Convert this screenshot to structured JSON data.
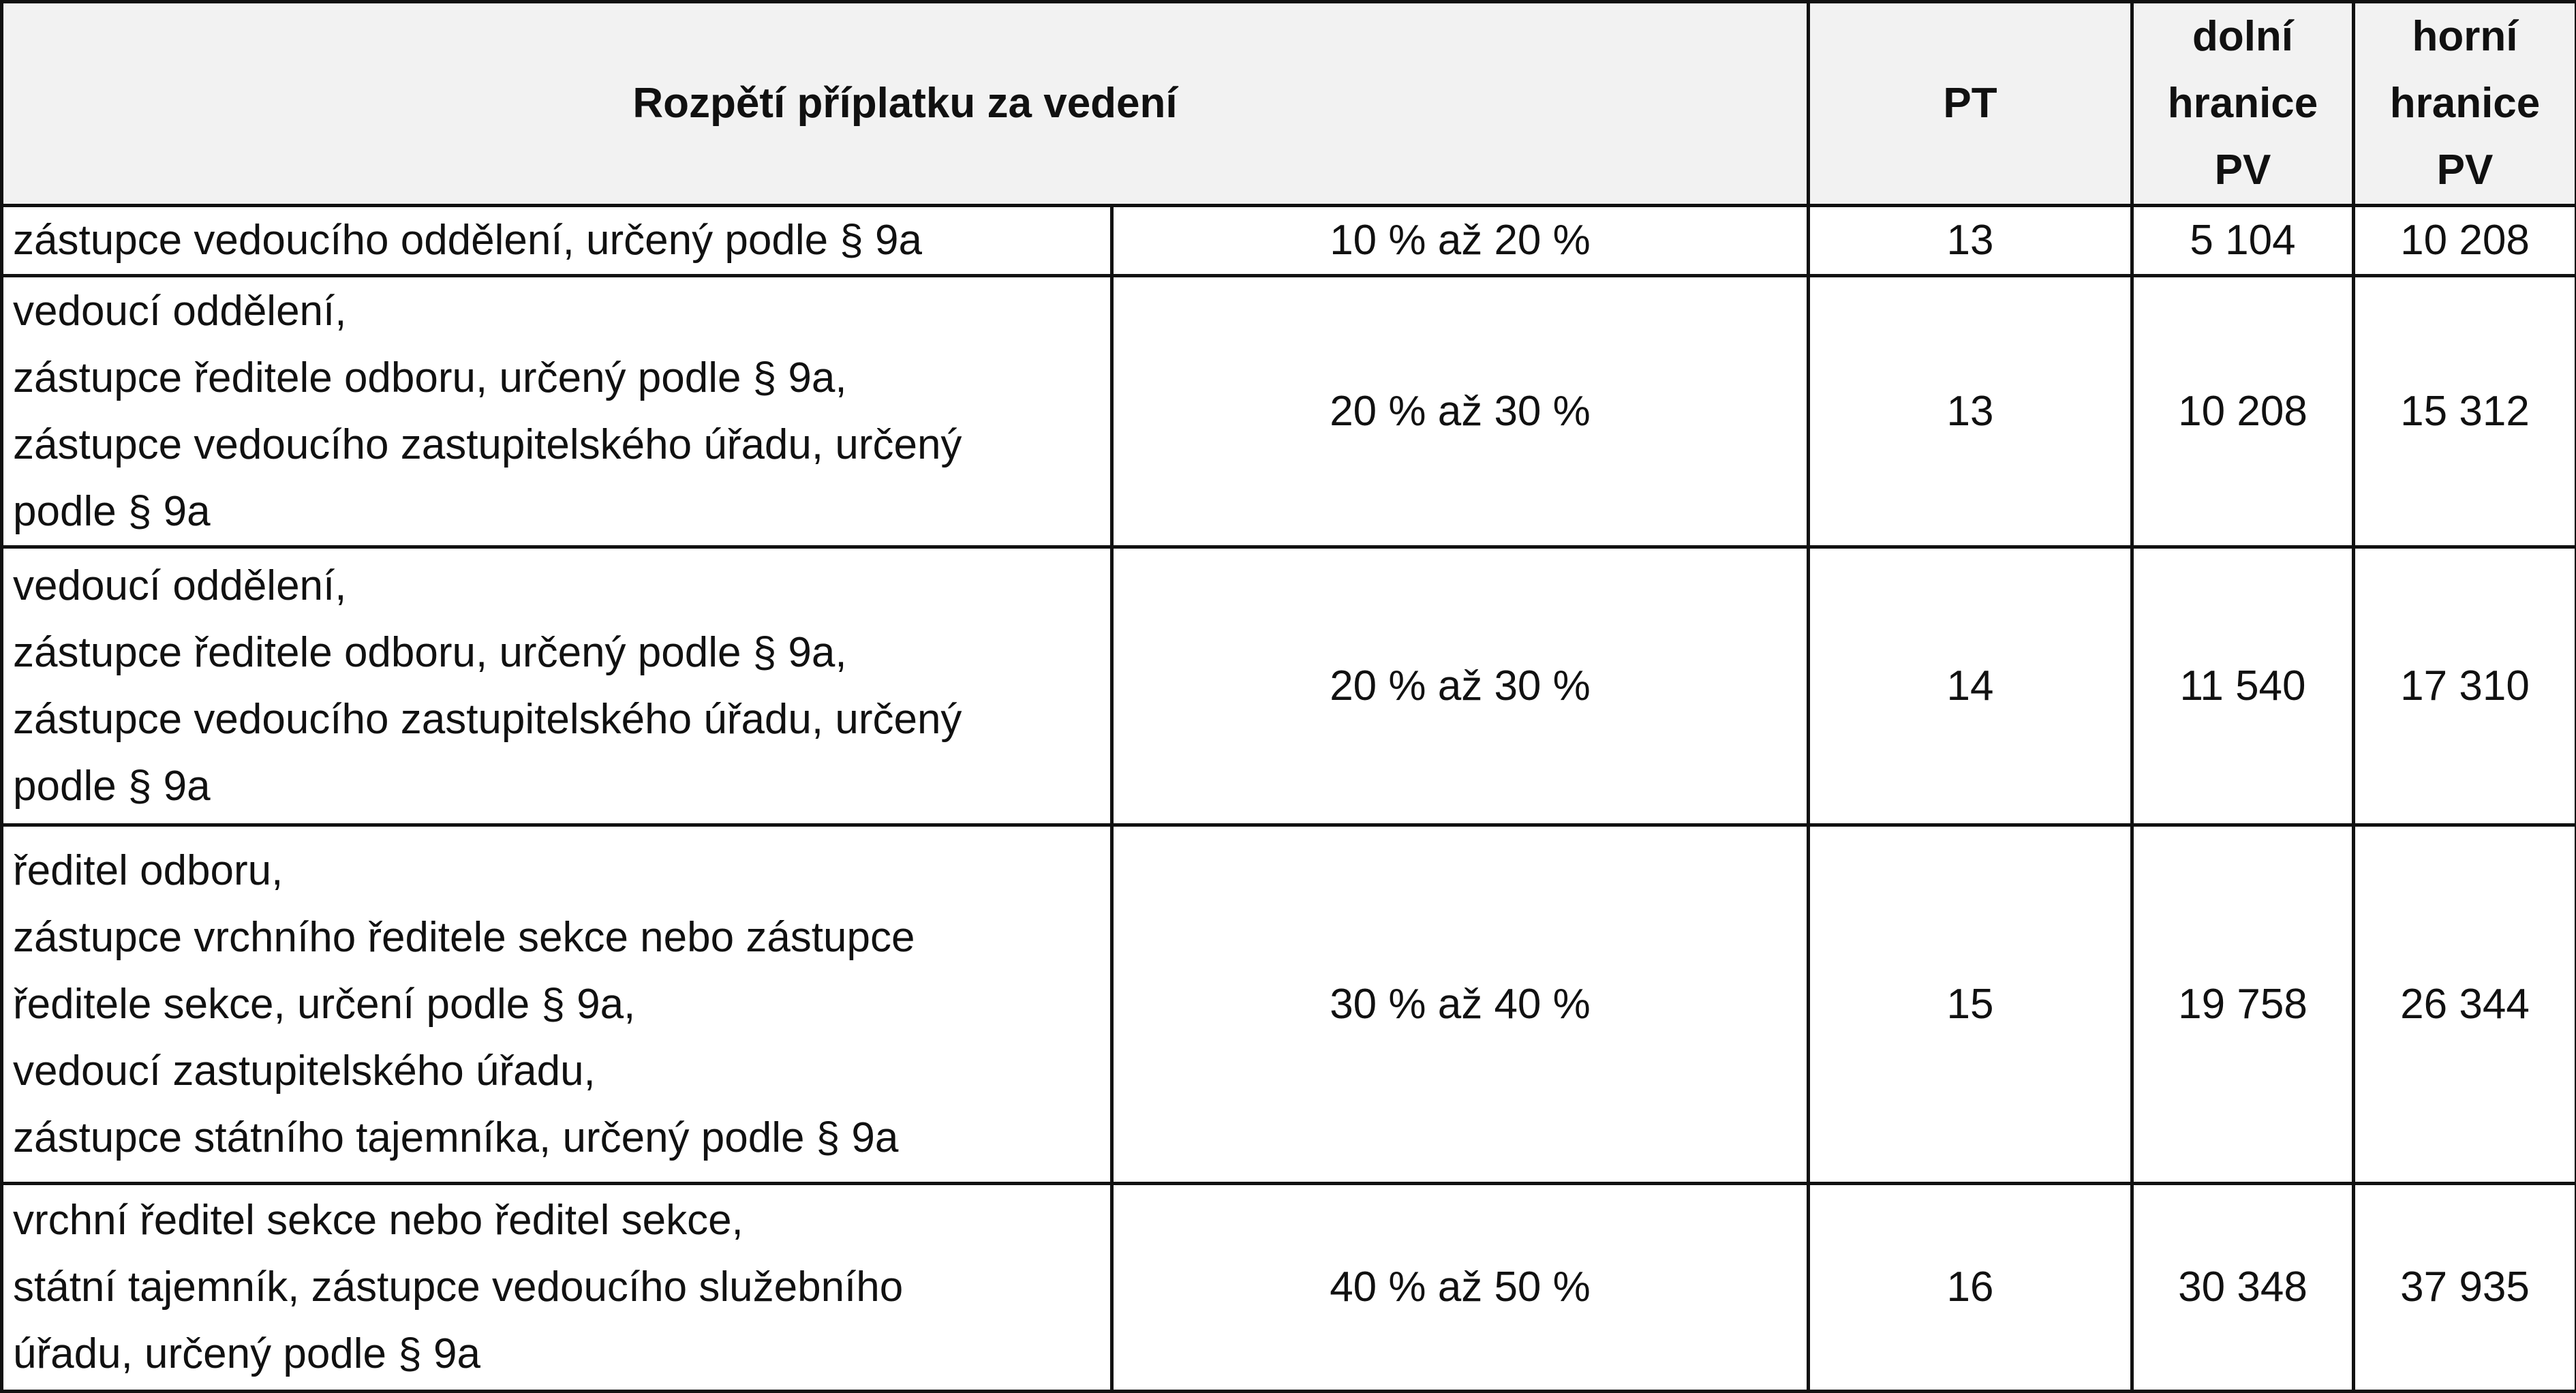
{
  "header": {
    "range_title": "Rozpětí příplatku za vedení",
    "pt": "PT",
    "lower_line1": "dolní",
    "lower_line2": "hranice",
    "lower_line3": "PV",
    "upper_line1": "horní",
    "upper_line2": "hranice",
    "upper_line3": "PV"
  },
  "rows": [
    {
      "positions": [
        "zástupce vedoucího oddělení, určený podle § 9a"
      ],
      "range": "10 % až 20 %",
      "pt": "13",
      "lower": "5 104",
      "upper": "10 208"
    },
    {
      "positions": [
        "vedoucí oddělení,",
        "zástupce ředitele odboru, určený podle § 9a,",
        "zástupce vedoucího zastupitelského úřadu, určený",
        "podle § 9a"
      ],
      "range": "20 % až 30 %",
      "pt": "13",
      "lower": "10 208",
      "upper": "15 312"
    },
    {
      "positions": [
        "vedoucí oddělení,",
        "zástupce ředitele odboru, určený podle § 9a,",
        "zástupce vedoucího zastupitelského úřadu, určený",
        "podle § 9a"
      ],
      "range": "20 % až 30 %",
      "pt": "14",
      "lower": "11 540",
      "upper": "17 310"
    },
    {
      "positions": [
        "ředitel odboru,",
        "zástupce vrchního ředitele sekce nebo zástupce",
        "ředitele sekce, určení podle § 9a,",
        "vedoucí zastupitelského úřadu,",
        "zástupce státního tajemníka, určený podle § 9a"
      ],
      "range": "30 % až 40 %",
      "pt": "15",
      "lower": "19 758",
      "upper": "26 344"
    },
    {
      "positions": [
        "vrchní ředitel sekce nebo ředitel sekce,",
        "státní tajemník, zástupce vedoucího služebního",
        "úřadu, určený podle § 9a"
      ],
      "range": "40 % až 50 %",
      "pt": "16",
      "lower": "30 348",
      "upper": "37 935"
    }
  ]
}
